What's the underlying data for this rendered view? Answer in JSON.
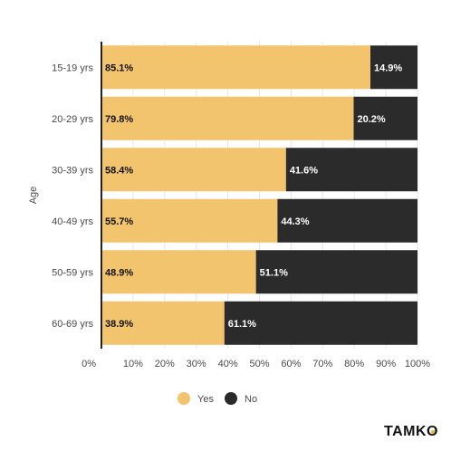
{
  "chart_data": {
    "type": "bar",
    "orientation": "horizontal",
    "stacked": true,
    "ylabel": "Age",
    "categories": [
      "15-19 yrs",
      "20-29 yrs",
      "30-39 yrs",
      "40-49 yrs",
      "50-59 yrs",
      "60-69 yrs"
    ],
    "series": [
      {
        "name": "Yes",
        "values": [
          85.1,
          79.8,
          58.4,
          55.7,
          48.9,
          38.9
        ],
        "labels": [
          "85.1%",
          "79.8%",
          "58.4%",
          "55.7%",
          "48.9%",
          "38.9%"
        ]
      },
      {
        "name": "No",
        "values": [
          14.9,
          20.2,
          41.6,
          44.3,
          51.1,
          61.1
        ],
        "labels": [
          "14.9%",
          "20.2%",
          "41.6%",
          "44.3%",
          "51.1%",
          "61.1%"
        ]
      }
    ],
    "xlim": [
      0,
      100
    ],
    "xticks": [
      "0%",
      "10%",
      "20%",
      "30%",
      "40%",
      "50%",
      "60%",
      "70%",
      "80%",
      "90%",
      "100%"
    ],
    "grid": true,
    "legend_position": "bottom-center",
    "colors": {
      "Yes": "#f2c46d",
      "No": "#2b2b2b"
    }
  },
  "brand": {
    "logo_text": "TAMKO",
    "accent": "#f0b83a"
  }
}
